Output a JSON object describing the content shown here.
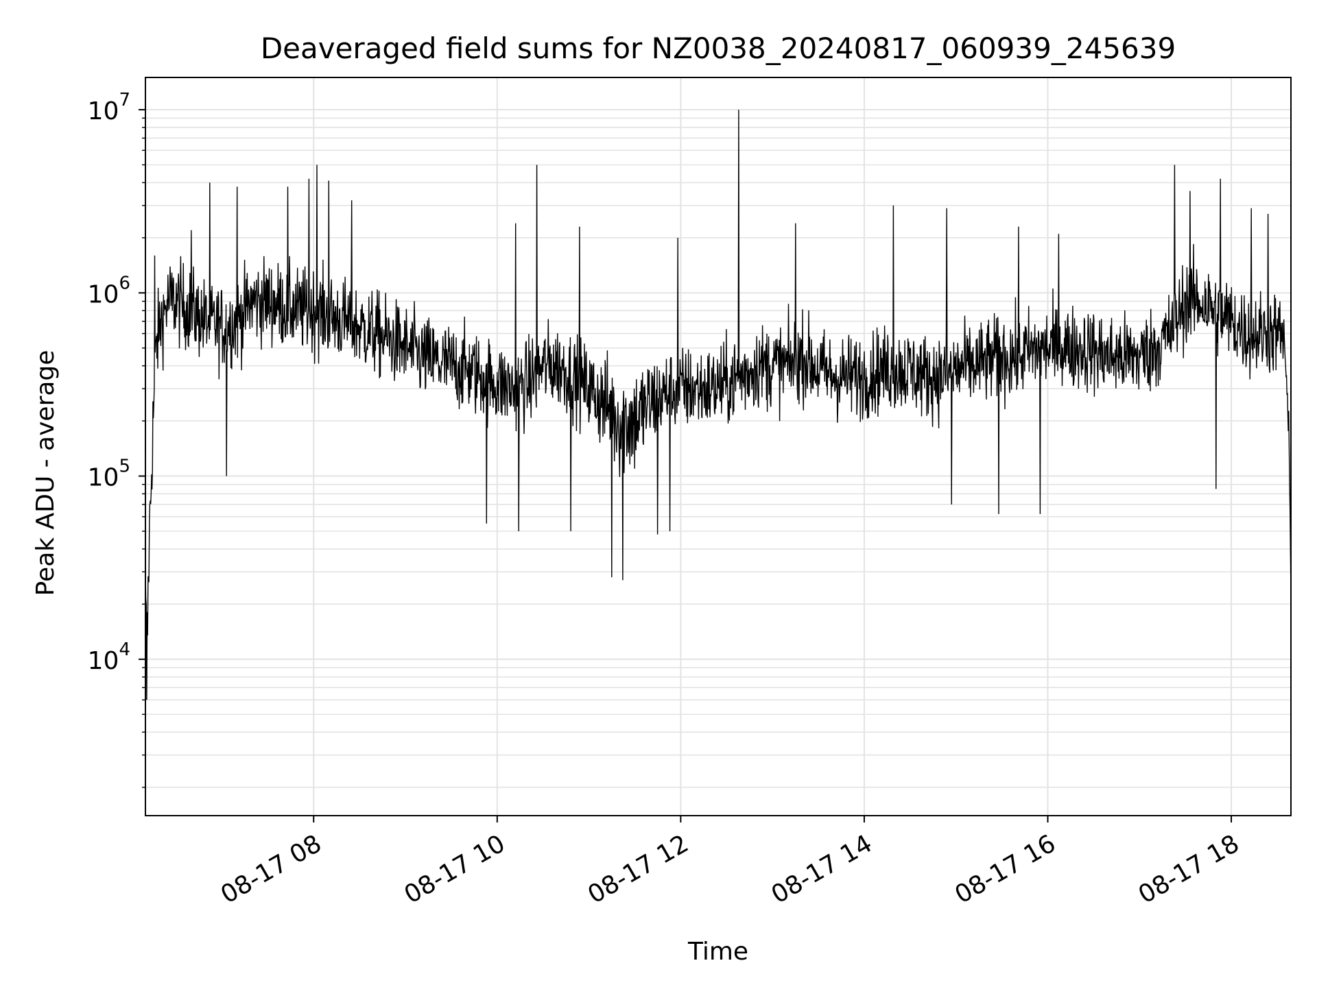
{
  "chart_data": {
    "type": "line",
    "title": "Deaveraged field sums for NZ0038_20240817_060939_245639",
    "xlabel": "Time",
    "ylabel": "Peak ADU - average",
    "yscale": "log",
    "ylim": [
      1400,
      15000000
    ],
    "xlim": [
      "2024-08-17 06:10",
      "2024-08-17 18:39"
    ],
    "x_ticks": [
      {
        "x": "2024-08-17 08:00",
        "label": "08-17 08"
      },
      {
        "x": "2024-08-17 10:00",
        "label": "08-17 10"
      },
      {
        "x": "2024-08-17 12:00",
        "label": "08-17 12"
      },
      {
        "x": "2024-08-17 14:00",
        "label": "08-17 14"
      },
      {
        "x": "2024-08-17 16:00",
        "label": "08-17 16"
      },
      {
        "x": "2024-08-17 18:00",
        "label": "08-17 18"
      }
    ],
    "y_ticks": [
      {
        "value": 10000,
        "base": "10",
        "exp": "4"
      },
      {
        "value": 100000,
        "base": "10",
        "exp": "5"
      },
      {
        "value": 1000000,
        "base": "10",
        "exp": "6"
      },
      {
        "value": 10000000,
        "base": "10",
        "exp": "7"
      }
    ],
    "grid": true,
    "line_color": "#000000",
    "series": [
      {
        "x": [
          "2024-08-17 06:10",
          "2024-08-17 06:11",
          "2024-08-17 06:12",
          "2024-08-17 06:13",
          "2024-08-17 06:15",
          "2024-08-17 06:17",
          "2024-08-17 06:20",
          "2024-08-17 06:25",
          "2024-08-17 06:30",
          "2024-08-17 06:40",
          "2024-08-17 06:50",
          "2024-08-17 07:00",
          "2024-08-17 07:10",
          "2024-08-17 07:20",
          "2024-08-17 07:30",
          "2024-08-17 07:40",
          "2024-08-17 07:50",
          "2024-08-17 08:00",
          "2024-08-17 08:10",
          "2024-08-17 08:20",
          "2024-08-17 08:30",
          "2024-08-17 08:40",
          "2024-08-17 08:50",
          "2024-08-17 09:00",
          "2024-08-17 09:10",
          "2024-08-17 09:20",
          "2024-08-17 09:30",
          "2024-08-17 09:40",
          "2024-08-17 09:50",
          "2024-08-17 10:00",
          "2024-08-17 10:10",
          "2024-08-17 10:20",
          "2024-08-17 10:30",
          "2024-08-17 10:40",
          "2024-08-17 10:50",
          "2024-08-17 11:00",
          "2024-08-17 11:10",
          "2024-08-17 11:20",
          "2024-08-17 11:30",
          "2024-08-17 11:40",
          "2024-08-17 11:50",
          "2024-08-17 12:00",
          "2024-08-17 12:10",
          "2024-08-17 12:20",
          "2024-08-17 12:30",
          "2024-08-17 12:40",
          "2024-08-17 12:50",
          "2024-08-17 13:00",
          "2024-08-17 13:10",
          "2024-08-17 13:20",
          "2024-08-17 13:30",
          "2024-08-17 13:40",
          "2024-08-17 13:50",
          "2024-08-17 14:00",
          "2024-08-17 14:10",
          "2024-08-17 14:20",
          "2024-08-17 14:30",
          "2024-08-17 14:40",
          "2024-08-17 14:50",
          "2024-08-17 15:00",
          "2024-08-17 15:10",
          "2024-08-17 15:20",
          "2024-08-17 15:30",
          "2024-08-17 15:40",
          "2024-08-17 15:50",
          "2024-08-17 16:00",
          "2024-08-17 16:10",
          "2024-08-17 16:20",
          "2024-08-17 16:30",
          "2024-08-17 16:40",
          "2024-08-17 16:50",
          "2024-08-17 17:00",
          "2024-08-17 17:10",
          "2024-08-17 17:20",
          "2024-08-17 17:30",
          "2024-08-17 17:40",
          "2024-08-17 17:50",
          "2024-08-17 18:00",
          "2024-08-17 18:10",
          "2024-08-17 18:20",
          "2024-08-17 18:30",
          "2024-08-17 18:35",
          "2024-08-17 18:38",
          "2024-08-17 18:39"
        ],
        "y_median": [
          20000,
          10000,
          30000,
          60000,
          200000,
          500000,
          700000,
          900000,
          900000,
          800000,
          700000,
          650000,
          700000,
          900000,
          900000,
          850000,
          800000,
          800000,
          750000,
          700000,
          650000,
          600000,
          550000,
          500000,
          450000,
          420000,
          400000,
          380000,
          350000,
          320000,
          300000,
          320000,
          400000,
          400000,
          350000,
          300000,
          250000,
          200000,
          200000,
          250000,
          280000,
          300000,
          300000,
          300000,
          320000,
          350000,
          400000,
          400000,
          400000,
          450000,
          380000,
          350000,
          350000,
          350000,
          380000,
          380000,
          380000,
          350000,
          350000,
          380000,
          400000,
          420000,
          450000,
          450000,
          480000,
          500000,
          500000,
          500000,
          480000,
          450000,
          450000,
          450000,
          500000,
          600000,
          900000,
          900000,
          800000,
          700000,
          600000,
          600000,
          600000,
          550000,
          120000,
          20000
        ],
        "y_spread_decades": [
          0.45,
          0.4,
          0.35,
          0.35,
          0.3,
          0.3,
          0.3,
          0.3,
          0.3,
          0.3,
          0.3,
          0.3,
          0.3,
          0.3,
          0.3,
          0.3,
          0.3,
          0.3,
          0.3,
          0.3,
          0.3,
          0.3,
          0.3,
          0.3,
          0.3,
          0.3,
          0.3,
          0.3,
          0.3,
          0.3,
          0.3,
          0.3,
          0.3,
          0.3,
          0.3,
          0.3,
          0.35,
          0.4,
          0.4,
          0.35,
          0.3,
          0.3,
          0.3,
          0.3,
          0.3,
          0.3,
          0.3,
          0.3,
          0.3,
          0.3,
          0.3,
          0.3,
          0.3,
          0.3,
          0.3,
          0.3,
          0.3,
          0.3,
          0.3,
          0.3,
          0.3,
          0.3,
          0.3,
          0.3,
          0.3,
          0.3,
          0.3,
          0.3,
          0.3,
          0.3,
          0.3,
          0.3,
          0.3,
          0.3,
          0.3,
          0.3,
          0.3,
          0.3,
          0.3,
          0.3,
          0.3,
          0.3,
          0.2,
          0.2
        ],
        "spikes": [
          {
            "x": "2024-08-17 06:16",
            "y": 1600000
          },
          {
            "x": "2024-08-17 06:40",
            "y": 2200000
          },
          {
            "x": "2024-08-17 06:52",
            "y": 4000000
          },
          {
            "x": "2024-08-17 07:10",
            "y": 3800000
          },
          {
            "x": "2024-08-17 07:43",
            "y": 3800000
          },
          {
            "x": "2024-08-17 07:57",
            "y": 4200000
          },
          {
            "x": "2024-08-17 08:02",
            "y": 5000000
          },
          {
            "x": "2024-08-17 08:10",
            "y": 4100000
          },
          {
            "x": "2024-08-17 08:25",
            "y": 3200000
          },
          {
            "x": "2024-08-17 10:26",
            "y": 5000000
          },
          {
            "x": "2024-08-17 10:12",
            "y": 2400000
          },
          {
            "x": "2024-08-17 10:54",
            "y": 2300000
          },
          {
            "x": "2024-08-17 11:58",
            "y": 2000000
          },
          {
            "x": "2024-08-17 12:38",
            "y": 10000000
          },
          {
            "x": "2024-08-17 13:15",
            "y": 2400000
          },
          {
            "x": "2024-08-17 14:19",
            "y": 3000000
          },
          {
            "x": "2024-08-17 14:54",
            "y": 2900000
          },
          {
            "x": "2024-08-17 15:41",
            "y": 2300000
          },
          {
            "x": "2024-08-17 16:07",
            "y": 2100000
          },
          {
            "x": "2024-08-17 17:23",
            "y": 5000000
          },
          {
            "x": "2024-08-17 17:33",
            "y": 3600000
          },
          {
            "x": "2024-08-17 17:53",
            "y": 4200000
          },
          {
            "x": "2024-08-17 18:13",
            "y": 2900000
          },
          {
            "x": "2024-08-17 18:24",
            "y": 2700000
          }
        ],
        "dips": [
          {
            "x": "2024-08-17 06:11",
            "y": 6000
          },
          {
            "x": "2024-08-17 07:03",
            "y": 100000
          },
          {
            "x": "2024-08-17 09:53",
            "y": 55000
          },
          {
            "x": "2024-08-17 10:14",
            "y": 50000
          },
          {
            "x": "2024-08-17 10:48",
            "y": 50000
          },
          {
            "x": "2024-08-17 11:15",
            "y": 28000
          },
          {
            "x": "2024-08-17 11:22",
            "y": 27000
          },
          {
            "x": "2024-08-17 11:45",
            "y": 48000
          },
          {
            "x": "2024-08-17 11:53",
            "y": 50000
          },
          {
            "x": "2024-08-17 14:57",
            "y": 70000
          },
          {
            "x": "2024-08-17 15:28",
            "y": 62000
          },
          {
            "x": "2024-08-17 15:55",
            "y": 62000
          },
          {
            "x": "2024-08-17 17:50",
            "y": 85000
          }
        ]
      }
    ]
  }
}
